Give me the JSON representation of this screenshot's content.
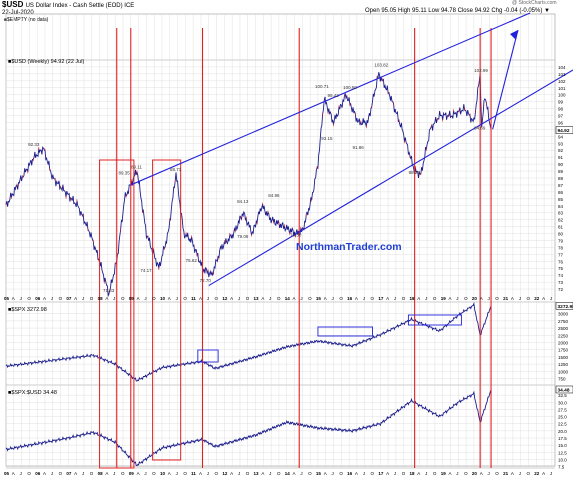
{
  "header": {
    "ticker": "$USD",
    "desc": "US Dollar Index - Cash Settle (EOD) ICE",
    "date": "22-Jul-2020",
    "stats": "Open 95.05  High 95.11  Low 94.78  Close 94.92  Chg -0.04 (-0.05%) ▼",
    "watermark": "@ StockCharts.com",
    "empty_label": "■$EMPTY (no data)"
  },
  "panels": {
    "usd_label": "■$USD (Weekly) 94.92 (22 Jul)",
    "spx_label": "■$SPX 3272.98",
    "ratio_label": "■$SPX:$USD 34.48",
    "usd_last": "94.92",
    "spx_last": "3272.98",
    "ratio_last": "34.48"
  },
  "brand": "NorthmanTrader.com",
  "colors": {
    "line": "#1c1e8c",
    "line_red": "#d41a2a",
    "trend": "#2222dd",
    "box_red": "#e02020",
    "grid": "#d8d8d8",
    "brand": "#1f3fd4"
  },
  "chart_data": [
    {
      "type": "line",
      "name": "usd",
      "x_ticks": [
        "05",
        "A",
        "J",
        "O",
        "06",
        "A",
        "J",
        "O",
        "07",
        "A",
        "J",
        "O",
        "08",
        "A",
        "J",
        "O",
        "09",
        "A",
        "J",
        "O",
        "10",
        "A",
        "J",
        "O",
        "11",
        "A",
        "J",
        "O",
        "12",
        "A",
        "J",
        "O",
        "13",
        "A",
        "J",
        "O",
        "14",
        "A",
        "J",
        "O",
        "15",
        "A",
        "J",
        "O",
        "16",
        "A",
        "J",
        "O",
        "17",
        "A",
        "J",
        "O",
        "18",
        "A",
        "J",
        "O",
        "19",
        "A",
        "J",
        "O",
        "20",
        "A",
        "J",
        "O",
        "21",
        "A",
        "J",
        "O",
        "22",
        "A",
        "J",
        "O"
      ],
      "y_ticks": [
        72,
        73,
        74,
        75,
        76,
        77,
        78,
        79,
        80,
        81,
        82,
        83,
        84,
        85,
        86,
        87,
        88,
        89,
        90,
        91,
        92,
        93,
        94,
        95,
        96,
        97,
        98,
        99,
        100,
        101,
        102,
        103,
        104
      ],
      "ylim": [
        71,
        105
      ],
      "series": [
        {
          "x": [
            2005.0,
            2005.5,
            2005.9,
            2006.2,
            2006.5,
            2006.9,
            2007.3,
            2007.7,
            2008.0,
            2008.3,
            2008.55,
            2008.8,
            2009.2,
            2009.5,
            2009.9,
            2010.2,
            2010.45,
            2010.7,
            2010.95,
            2011.3,
            2011.6,
            2011.9,
            2012.3,
            2012.6,
            2012.9,
            2013.2,
            2013.5,
            2013.9,
            2014.3,
            2014.5,
            2014.8,
            2015.0,
            2015.2,
            2015.5,
            2015.9,
            2016.3,
            2016.6,
            2016.95,
            2017.3,
            2017.7,
            2018.1,
            2018.3,
            2018.6,
            2018.9,
            2019.3,
            2019.7,
            2020.0,
            2020.2,
            2020.25,
            2020.35,
            2020.55
          ],
          "y": [
            84,
            88,
            91,
            92.3,
            88,
            86,
            84,
            80,
            76,
            71.3,
            76,
            85,
            89.1,
            80,
            75,
            80,
            88.7,
            80,
            79,
            75,
            74,
            78,
            80,
            83,
            80,
            84,
            82,
            81,
            80,
            80.4,
            85,
            90,
            99.4,
            96,
            100,
            96,
            96,
            103,
            100,
            95,
            89,
            88.5,
            95,
            97,
            97,
            98,
            96,
            103,
            95,
            100,
            94.9
          ]
        }
      ],
      "annotations": [
        {
          "text": "92.33",
          "x": 2005.9,
          "y": 92.3
        },
        {
          "text": "71.33",
          "x": 2008.3,
          "y": 71.3
        },
        {
          "text": "89.35",
          "x": 2008.8,
          "y": 88.2
        },
        {
          "text": "89.11",
          "x": 2009.2,
          "y": 89.1
        },
        {
          "text": "74.17",
          "x": 2009.5,
          "y": 74.2
        },
        {
          "text": "88.71",
          "x": 2010.45,
          "y": 88.7
        },
        {
          "text": "75.62",
          "x": 2010.95,
          "y": 75.6
        },
        {
          "text": "72.70",
          "x": 2011.4,
          "y": 72.7
        },
        {
          "text": "79.08",
          "x": 2012.6,
          "y": 79.1
        },
        {
          "text": "84.13",
          "x": 2012.6,
          "y": 84.1
        },
        {
          "text": "84.96",
          "x": 2013.6,
          "y": 85.0
        },
        {
          "text": "79.30",
          "x": 2014.3,
          "y": 79.3
        },
        {
          "text": "100.71",
          "x": 2015.1,
          "y": 100.7
        },
        {
          "text": "93.15",
          "x": 2015.3,
          "y": 93.2
        },
        {
          "text": "99.42",
          "x": 2015.5,
          "y": 99.4
        },
        {
          "text": "100.50",
          "x": 2016.0,
          "y": 100.5
        },
        {
          "text": "91.86",
          "x": 2016.3,
          "y": 91.9
        },
        {
          "text": "103.82",
          "x": 2017.0,
          "y": 103.8
        },
        {
          "text": "88.25",
          "x": 2018.1,
          "y": 88.3
        },
        {
          "text": "102.99",
          "x": 2020.2,
          "y": 103.0
        },
        {
          "text": "94.69",
          "x": 2020.2,
          "y": 94.7
        }
      ]
    },
    {
      "type": "line",
      "name": "spx",
      "y_ticks": [
        750,
        1000,
        1250,
        1500,
        1750,
        2000,
        2250,
        2500,
        2750,
        3000
      ],
      "ylim": [
        700,
        3300
      ],
      "series": [
        {
          "x": [
            2005.0,
            2007.0,
            2007.8,
            2008.5,
            2009.2,
            2010.0,
            2011.3,
            2011.7,
            2013.0,
            2014.0,
            2015.0,
            2016.1,
            2017.0,
            2018.0,
            2018.9,
            2019.5,
            2020.0,
            2020.2,
            2020.55
          ],
          "y": [
            1180,
            1450,
            1560,
            1250,
            680,
            1130,
            1350,
            1100,
            1500,
            1850,
            2050,
            1880,
            2270,
            2800,
            2400,
            2950,
            3300,
            2250,
            3272
          ]
        }
      ]
    },
    {
      "type": "line",
      "name": "spx_usd",
      "y_ticks": [
        7.5,
        10.0,
        12.5,
        15.0,
        17.5,
        20.0,
        22.5,
        25.0,
        27.5,
        30.0,
        32.5
      ],
      "ylim": [
        7,
        35
      ],
      "series": [
        {
          "x": [
            2005.0,
            2007.0,
            2007.8,
            2008.5,
            2009.2,
            2010.0,
            2011.3,
            2011.7,
            2013.0,
            2014.0,
            2015.0,
            2016.1,
            2017.0,
            2018.0,
            2018.9,
            2019.5,
            2020.0,
            2020.2,
            2020.55
          ],
          "y": [
            13.5,
            17.5,
            19.5,
            16.0,
            8.0,
            14.0,
            17.0,
            14.5,
            18.5,
            23.0,
            21.0,
            20.0,
            22.5,
            30.5,
            25.0,
            30.0,
            33.0,
            23.0,
            34.48
          ]
        }
      ]
    }
  ],
  "time_axis_years": [
    "05",
    "06",
    "07",
    "08",
    "09",
    "10",
    "11",
    "12",
    "13",
    "14",
    "15",
    "16",
    "17",
    "18",
    "19",
    "20",
    "21",
    "22"
  ]
}
